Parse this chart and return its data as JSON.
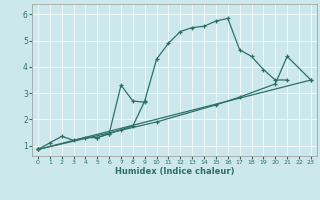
{
  "xlabel": "Humidex (Indice chaleur)",
  "bg_color": "#cde8ec",
  "line_color": "#2d7068",
  "grid_color": "#ffffff",
  "xlim": [
    -0.5,
    23.5
  ],
  "ylim": [
    0.6,
    6.4
  ],
  "xticks": [
    0,
    1,
    2,
    3,
    4,
    5,
    6,
    7,
    8,
    9,
    10,
    11,
    12,
    13,
    14,
    15,
    16,
    17,
    18,
    19,
    20,
    21,
    22,
    23
  ],
  "yticks": [
    1,
    2,
    3,
    4,
    5,
    6
  ],
  "series": [
    {
      "x": [
        0,
        1,
        2,
        3,
        4,
        5,
        6,
        7,
        8,
        9,
        10,
        11,
        12,
        13,
        14,
        15,
        16,
        17,
        18,
        19,
        20,
        21
      ],
      "y": [
        0.85,
        1.1,
        1.35,
        1.2,
        1.3,
        1.3,
        1.45,
        1.6,
        1.75,
        2.7,
        4.3,
        4.9,
        5.35,
        5.5,
        5.55,
        5.75,
        5.85,
        4.65,
        4.4,
        3.9,
        3.5,
        3.5
      ]
    },
    {
      "x": [
        5,
        6,
        7,
        8,
        9
      ],
      "y": [
        1.3,
        1.45,
        3.3,
        2.7,
        2.65
      ]
    },
    {
      "x": [
        0,
        23
      ],
      "y": [
        0.85,
        3.5
      ]
    },
    {
      "x": [
        0,
        10,
        15,
        17,
        20,
        21,
        23
      ],
      "y": [
        0.85,
        1.9,
        2.55,
        2.85,
        3.35,
        4.4,
        3.5
      ]
    }
  ]
}
